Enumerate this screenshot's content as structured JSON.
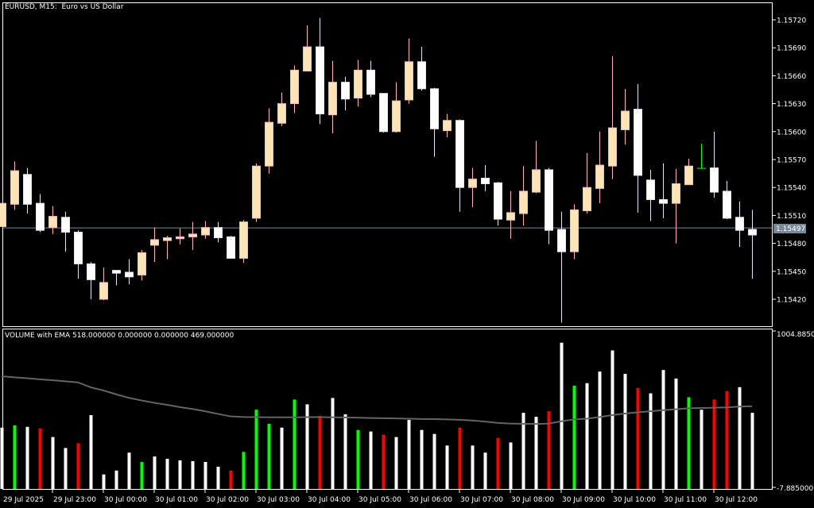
{
  "window": {
    "title": "EURUSD, M15:  Euro vs US Dollar",
    "current_price": "1.15497"
  },
  "volume_panel": {
    "title": "VOLUME with EMA 518.000000 0.000000 0.000000 469.000000",
    "scale_max": "1004.88500",
    "scale_min": "-7.885000"
  },
  "colors": {
    "background": "#000000",
    "frame": "#ffffff",
    "bull_fill": "#ffe4b5",
    "bull_border": "#ffb6c1",
    "bear_fill": "#ffffff",
    "bear_border": "#e6e6fa",
    "doji": "#00ff00",
    "price_line": "#778899",
    "vol_white": "#ffffff",
    "vol_green": "#00ff00",
    "vol_red": "#ff0000",
    "ema": "#646464"
  },
  "price_axis": [
    "1.15720",
    "1.15690",
    "1.15660",
    "1.15630",
    "1.15600",
    "1.15570",
    "1.15540",
    "1.15510",
    "1.15480",
    "1.15450",
    "1.15420"
  ],
  "time_axis": [
    "29 Jul 2025",
    "29 Jul 23:00",
    "30 Jul 00:00",
    "30 Jul 01:00",
    "30 Jul 02:00",
    "30 Jul 03:00",
    "30 Jul 04:00",
    "30 Jul 05:00",
    "30 Jul 06:00",
    "30 Jul 07:00",
    "30 Jul 08:00",
    "30 Jul 09:00",
    "30 Jul 10:00",
    "30 Jul 11:00",
    "30 Jul 12:00"
  ],
  "chart_data": {
    "type": "candlestick",
    "symbol": "EURUSD",
    "timeframe": "M15",
    "ylim": [
      1.15395,
      1.15735
    ],
    "ohlc": [
      [
        1.15498,
        1.15523,
        1.15498,
        1.15523
      ],
      [
        1.15522,
        1.15568,
        1.15516,
        1.15558
      ],
      [
        1.15554,
        1.15561,
        1.15512,
        1.15522
      ],
      [
        1.15523,
        1.15533,
        1.15492,
        1.15494
      ],
      [
        1.15497,
        1.1552,
        1.1549,
        1.15509
      ],
      [
        1.15508,
        1.15514,
        1.15471,
        1.15492
      ],
      [
        1.15492,
        1.15494,
        1.15442,
        1.15458
      ],
      [
        1.15458,
        1.1546,
        1.1542,
        1.15441
      ],
      [
        1.1542,
        1.15454,
        1.15419,
        1.15438
      ],
      [
        1.15451,
        1.15451,
        1.15435,
        1.15448
      ],
      [
        1.15449,
        1.15463,
        1.15436,
        1.15444
      ],
      [
        1.15446,
        1.15473,
        1.1544,
        1.1547
      ],
      [
        1.15478,
        1.15497,
        1.1546,
        1.15484
      ],
      [
        1.15483,
        1.15488,
        1.15463,
        1.15486
      ],
      [
        1.15485,
        1.15496,
        1.15479,
        1.15487
      ],
      [
        1.15487,
        1.15503,
        1.15473,
        1.1549
      ],
      [
        1.15489,
        1.15504,
        1.15485,
        1.15497
      ],
      [
        1.15497,
        1.15503,
        1.15481,
        1.15486
      ],
      [
        1.15487,
        1.15488,
        1.15464,
        1.15464
      ],
      [
        1.15464,
        1.15505,
        1.15459,
        1.15503
      ],
      [
        1.15507,
        1.15566,
        1.15503,
        1.15563
      ],
      [
        1.15563,
        1.15625,
        1.15555,
        1.1561
      ],
      [
        1.15609,
        1.15642,
        1.15606,
        1.1563
      ],
      [
        1.1563,
        1.15671,
        1.1562,
        1.15666
      ],
      [
        1.15665,
        1.15714,
        1.15665,
        1.15691
      ],
      [
        1.15691,
        1.15722,
        1.15608,
        1.15619
      ],
      [
        1.15618,
        1.15676,
        1.15598,
        1.15653
      ],
      [
        1.15653,
        1.15659,
        1.15623,
        1.15635
      ],
      [
        1.15636,
        1.15677,
        1.15627,
        1.15666
      ],
      [
        1.15666,
        1.15676,
        1.15637,
        1.1564
      ],
      [
        1.15641,
        1.15641,
        1.15599,
        1.156
      ],
      [
        1.156,
        1.15653,
        1.15599,
        1.15633
      ],
      [
        1.15634,
        1.157,
        1.1563,
        1.15675
      ],
      [
        1.15675,
        1.15691,
        1.15644,
        1.15646
      ],
      [
        1.15646,
        1.15647,
        1.15573,
        1.15603
      ],
      [
        1.15601,
        1.15619,
        1.15594,
        1.15612
      ],
      [
        1.15612,
        1.15613,
        1.15514,
        1.1554
      ],
      [
        1.1554,
        1.15561,
        1.15519,
        1.15549
      ],
      [
        1.1555,
        1.15564,
        1.15536,
        1.15544
      ],
      [
        1.15545,
        1.15546,
        1.15499,
        1.15506
      ],
      [
        1.15505,
        1.15536,
        1.15485,
        1.15513
      ],
      [
        1.15512,
        1.15563,
        1.15499,
        1.15536
      ],
      [
        1.15535,
        1.1559,
        1.15534,
        1.15559
      ],
      [
        1.15559,
        1.15561,
        1.15479,
        1.15494
      ],
      [
        1.15495,
        1.15514,
        1.15395,
        1.15471
      ],
      [
        1.15471,
        1.15522,
        1.15463,
        1.15516
      ],
      [
        1.15515,
        1.15577,
        1.15512,
        1.1554
      ],
      [
        1.15539,
        1.156,
        1.15523,
        1.15564
      ],
      [
        1.15563,
        1.15681,
        1.15549,
        1.15604
      ],
      [
        1.15602,
        1.15646,
        1.15586,
        1.15622
      ],
      [
        1.15624,
        1.15651,
        1.15513,
        1.15553
      ],
      [
        1.15548,
        1.15559,
        1.15504,
        1.15527
      ],
      [
        1.15527,
        1.15566,
        1.15507,
        1.15523
      ],
      [
        1.15523,
        1.1556,
        1.1548,
        1.15544
      ],
      [
        1.15543,
        1.15571,
        1.15543,
        1.15563
      ],
      [
        1.15561,
        1.15587,
        1.1556,
        1.15561
      ],
      [
        1.15561,
        1.156,
        1.15529,
        1.15535
      ],
      [
        1.15536,
        1.15547,
        1.15506,
        1.15507
      ],
      [
        1.15508,
        1.15525,
        1.15476,
        1.15494
      ],
      [
        1.15495,
        1.15516,
        1.15442,
        1.15489
      ]
    ],
    "volume": [
      379,
      394,
      384,
      374,
      318,
      247,
      278,
      460,
      76,
      101,
      217,
      157,
      192,
      177,
      167,
      162,
      157,
      126,
      101,
      222,
      495,
      404,
      379,
      561,
      530,
      455,
      571,
      465,
      364,
      354,
      333,
      318,
      429,
      364,
      338,
      263,
      379,
      263,
      217,
      313,
      283,
      475,
      449,
      485,
      929,
      651,
      667,
      742,
      879,
      727,
      636,
      601,
      752,
      697,
      576,
      495,
      561,
      616,
      641,
      475
    ],
    "volume_colors": [
      "white",
      "green",
      "white",
      "red",
      "white",
      "white",
      "red",
      "white",
      "white",
      "white",
      "white",
      "green",
      "white",
      "white",
      "white",
      "white",
      "white",
      "white",
      "red",
      "green",
      "green",
      "green",
      "white",
      "green",
      "white",
      "red",
      "white",
      "white",
      "green",
      "white",
      "red",
      "white",
      "white",
      "white",
      "white",
      "white",
      "red",
      "white",
      "white",
      "red",
      "white",
      "white",
      "white",
      "red",
      "white",
      "green",
      "white",
      "white",
      "white",
      "white",
      "red",
      "white",
      "white",
      "white",
      "green",
      "white",
      "red",
      "red",
      "white",
      "white"
    ],
    "ema": [
      712,
      705,
      699,
      692,
      686,
      679,
      672,
      640,
      620,
      595,
      572,
      555,
      540,
      527,
      512,
      500,
      485,
      468,
      452,
      448,
      447,
      446,
      446,
      446,
      447,
      447,
      446,
      445,
      443,
      441,
      440,
      439,
      437,
      435,
      434,
      432,
      430,
      425,
      418,
      410,
      405,
      404,
      403,
      405,
      420,
      432,
      437,
      447,
      460,
      470,
      478,
      485,
      492,
      498,
      504,
      506,
      508,
      510,
      515,
      518
    ],
    "volume_ylim": [
      -7.885,
      1004.885
    ]
  }
}
